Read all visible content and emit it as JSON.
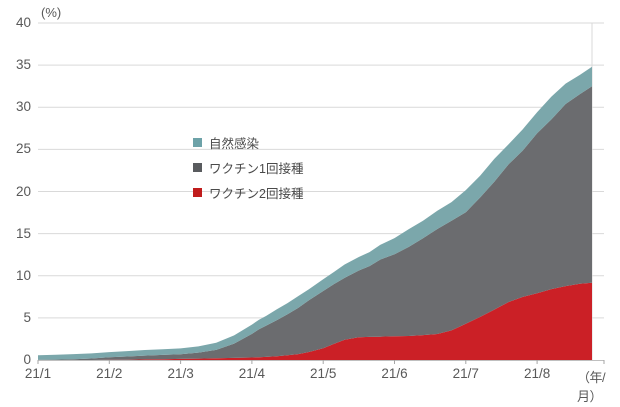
{
  "axis": {
    "y_unit": "(%)",
    "x_unit": "（年/月）"
  },
  "legend": {
    "items": [
      {
        "label": "自然感染",
        "color": "#6da2a8"
      },
      {
        "label": "ワクチン1回接種",
        "color": "#595b5e"
      },
      {
        "label": "ワクチン2回接種",
        "color": "#c01c1c"
      }
    ]
  },
  "chart_data": {
    "type": "area",
    "stacked": true,
    "title": "",
    "ylabel": "(%)",
    "xlabel": "（年/月）",
    "ylim": [
      0,
      40
    ],
    "grid": true,
    "legend_position": "inside-plot-upper-left",
    "y_ticks": [
      0,
      5,
      10,
      15,
      20,
      25,
      30,
      35,
      40
    ],
    "x_tick_labels": [
      "21/1",
      "21/2",
      "21/3",
      "21/4",
      "21/5",
      "21/6",
      "21/7",
      "21/8"
    ],
    "x_months": [
      0,
      0.25,
      0.5,
      0.75,
      1,
      1.25,
      1.5,
      1.75,
      2,
      2.25,
      2.5,
      2.75,
      3,
      3.1,
      3.2,
      3.35,
      3.5,
      3.65,
      3.8,
      4,
      4.15,
      4.3,
      4.5,
      4.65,
      4.8,
      5,
      5.2,
      5.4,
      5.6,
      5.8,
      6,
      6.2,
      6.4,
      6.6,
      6.8,
      7,
      7.2,
      7.4,
      7.6,
      7.77
    ],
    "series": [
      {
        "name": "ワクチン2回接種",
        "key": "vaccine-dose2-area",
        "color": "#cb2026",
        "values": [
          0,
          0,
          0,
          0,
          0.02,
          0.04,
          0.07,
          0.1,
          0.13,
          0.17,
          0.2,
          0.25,
          0.3,
          0.33,
          0.37,
          0.45,
          0.55,
          0.7,
          0.95,
          1.4,
          1.9,
          2.4,
          2.7,
          2.75,
          2.77,
          2.8,
          2.85,
          2.95,
          3.1,
          3.5,
          4.3,
          5.1,
          6.0,
          6.9,
          7.5,
          7.9,
          8.4,
          8.8,
          9.05,
          9.2
        ]
      },
      {
        "name": "ワクチン1回接種",
        "key": "vaccine-dose1-area",
        "color": "#6b6c6f",
        "values": [
          0.02,
          0.05,
          0.1,
          0.18,
          0.3,
          0.38,
          0.45,
          0.5,
          0.55,
          0.7,
          1.0,
          1.7,
          2.8,
          3.3,
          3.7,
          4.3,
          4.9,
          5.5,
          6.1,
          6.8,
          7.1,
          7.4,
          7.9,
          8.4,
          9.1,
          9.8,
          10.6,
          11.5,
          12.4,
          13.0,
          13.3,
          14.2,
          15.2,
          16.2,
          17.4,
          19.0,
          20.3,
          21.5,
          22.5,
          23.2
        ]
      },
      {
        "name": "自然感染",
        "key": "natural-infection-area",
        "color": "#7ba7ab",
        "values": [
          0.55,
          0.57,
          0.6,
          0.61,
          0.62,
          0.64,
          0.66,
          0.68,
          0.7,
          0.75,
          0.85,
          0.95,
          1.1,
          1.15,
          1.2,
          1.25,
          1.3,
          1.35,
          1.38,
          1.4,
          1.45,
          1.5,
          1.6,
          1.7,
          1.8,
          1.9,
          2.0,
          2.1,
          2.2,
          2.35,
          2.5,
          2.55,
          2.6,
          2.6,
          2.55,
          2.5,
          2.5,
          2.45,
          2.4,
          2.4
        ]
      }
    ]
  }
}
